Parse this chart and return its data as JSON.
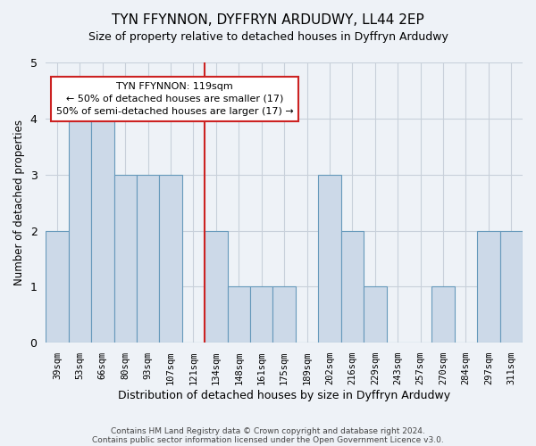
{
  "title": "TYN FFYNNON, DYFFRYN ARDUDWY, LL44 2EP",
  "subtitle": "Size of property relative to detached houses in Dyffryn Ardudwy",
  "xlabel": "Distribution of detached houses by size in Dyffryn Ardudwy",
  "ylabel": "Number of detached properties",
  "footnote1": "Contains HM Land Registry data © Crown copyright and database right 2024.",
  "footnote2": "Contains public sector information licensed under the Open Government Licence v3.0.",
  "categories": [
    "39sqm",
    "53sqm",
    "66sqm",
    "80sqm",
    "93sqm",
    "107sqm",
    "121sqm",
    "134sqm",
    "148sqm",
    "161sqm",
    "175sqm",
    "189sqm",
    "202sqm",
    "216sqm",
    "229sqm",
    "243sqm",
    "257sqm",
    "270sqm",
    "284sqm",
    "297sqm",
    "311sqm"
  ],
  "values": [
    2,
    4,
    4,
    3,
    3,
    3,
    0,
    2,
    1,
    1,
    1,
    0,
    3,
    2,
    1,
    0,
    0,
    1,
    0,
    2,
    2
  ],
  "bar_color": "#ccd9e8",
  "bar_edge_color": "#6699bb",
  "grid_color": "#c8d0da",
  "bg_color": "#eef2f7",
  "vline_position": 6.5,
  "vline_color": "#cc2222",
  "ylim": [
    0,
    5
  ],
  "yticks": [
    0,
    1,
    2,
    3,
    4,
    5
  ],
  "annotation_line1": "TYN FFYNNON: 119sqm",
  "annotation_line2": "← 50% of detached houses are smaller (17)",
  "annotation_line3": "50% of semi-detached houses are larger (17) →",
  "annotation_box_color": "#ffffff",
  "annotation_box_edge_color": "#cc2222"
}
